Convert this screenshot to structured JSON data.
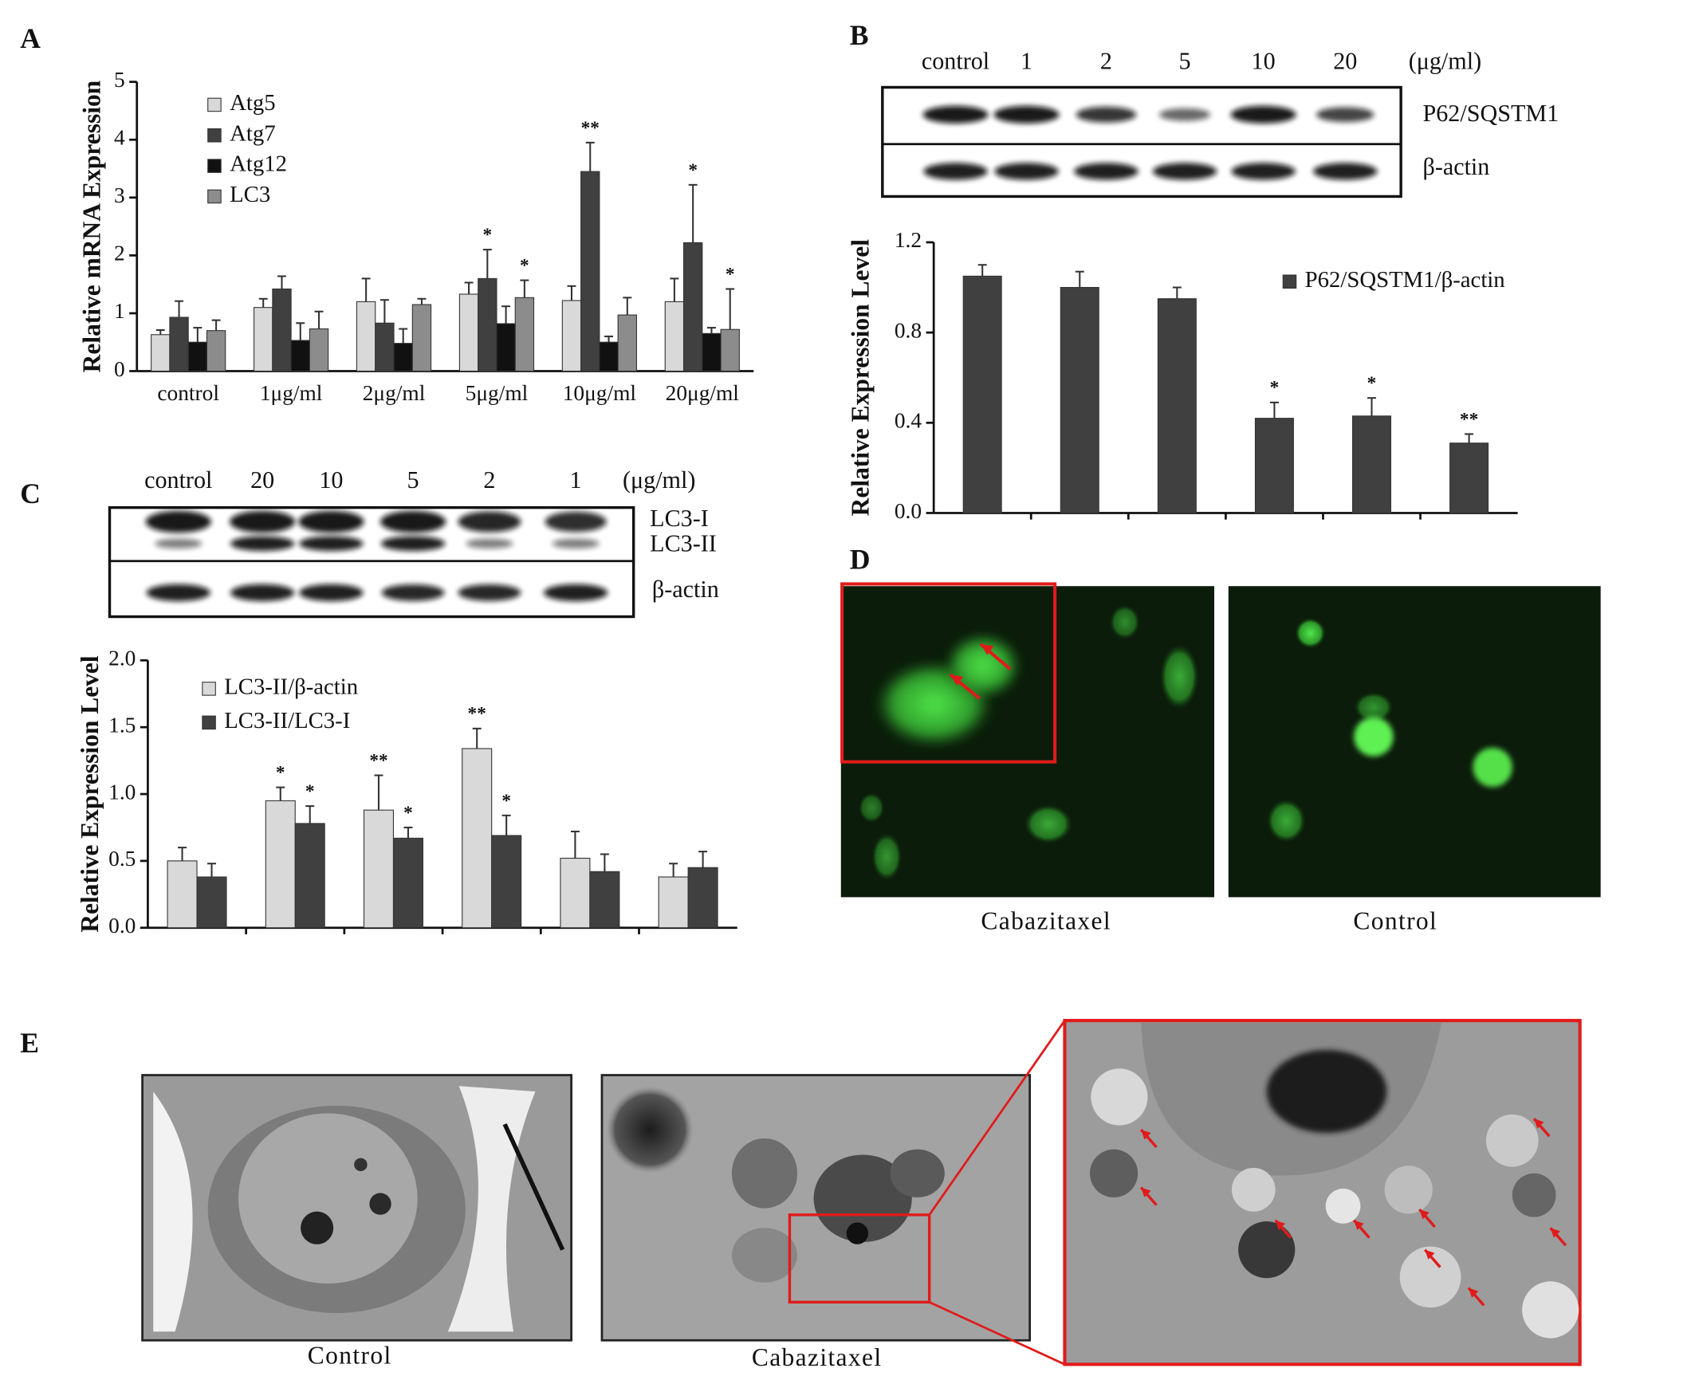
{
  "panel_labels": [
    "A",
    "B",
    "C",
    "D",
    "E"
  ],
  "chart_data": [
    {
      "type": "bar",
      "y_label": "Relative mRNA Expression",
      "categories": [
        "control",
        "1μg/ml",
        "2μg/ml",
        "5μg/ml",
        "10μg/ml",
        "20μg/ml"
      ],
      "ylim": [
        0,
        5
      ],
      "yticks": [
        0,
        1,
        2,
        3,
        4,
        5
      ],
      "series": [
        {
          "name": "Atg5",
          "color": "#d9d9d9",
          "values": [
            0.63,
            1.1,
            1.2,
            1.33,
            1.22,
            1.2
          ],
          "errors": [
            0.08,
            0.15,
            0.4,
            0.2,
            0.25,
            0.4
          ],
          "stars": [
            null,
            null,
            null,
            null,
            null,
            null
          ]
        },
        {
          "name": "Atg7",
          "color": "#404040",
          "values": [
            0.93,
            1.42,
            0.83,
            1.6,
            3.45,
            2.22
          ],
          "errors": [
            0.28,
            0.22,
            0.4,
            0.5,
            0.5,
            1.0
          ],
          "stars": [
            null,
            null,
            null,
            "*",
            "**",
            "*"
          ]
        },
        {
          "name": "Atg12",
          "color": "#111111",
          "values": [
            0.5,
            0.53,
            0.48,
            0.82,
            0.5,
            0.65
          ],
          "errors": [
            0.25,
            0.3,
            0.25,
            0.3,
            0.1,
            0.1
          ],
          "stars": [
            null,
            null,
            null,
            null,
            null,
            null
          ]
        },
        {
          "name": "LC3",
          "color": "#8c8c8c",
          "values": [
            0.7,
            0.73,
            1.15,
            1.27,
            0.97,
            0.72
          ],
          "errors": [
            0.18,
            0.3,
            0.1,
            0.3,
            0.3,
            0.7
          ],
          "stars": [
            null,
            null,
            null,
            "*",
            null,
            "*"
          ]
        }
      ]
    },
    {
      "type": "bar",
      "y_label": "Relative Expression Level",
      "categories": [
        null,
        null,
        null,
        null,
        null,
        null
      ],
      "ylim": [
        0,
        1.2
      ],
      "yticks": [
        {
          "value": 0,
          "label": "0.0"
        },
        0.4,
        0.8,
        1.2
      ],
      "series": [
        {
          "name": "P62/SQSTM1/β-actin",
          "color": "#404040",
          "values": [
            1.05,
            1.0,
            0.95,
            0.42,
            0.43,
            0.31
          ],
          "errors": [
            0.05,
            0.07,
            0.05,
            0.07,
            0.08,
            0.04
          ],
          "stars": [
            null,
            null,
            null,
            "*",
            "*",
            "**"
          ]
        }
      ]
    },
    {
      "type": "bar",
      "y_label": "Relative Expression Level",
      "categories": [
        null,
        null,
        null,
        null,
        null,
        null
      ],
      "ylim": [
        0,
        2.0
      ],
      "yticks": [
        {
          "value": 0,
          "label": "0.0"
        },
        0.5,
        {
          "value": 1,
          "label": "1.0"
        },
        1.5,
        {
          "value": 2,
          "label": "2.0"
        }
      ],
      "series": [
        {
          "name": "LC3-II/β-actin",
          "color": "#d9d9d9",
          "values": [
            0.5,
            0.95,
            0.88,
            1.34,
            0.52,
            0.38
          ],
          "errors": [
            0.1,
            0.1,
            0.26,
            0.15,
            0.2,
            0.1
          ],
          "stars": [
            null,
            "*",
            "**",
            "**",
            null,
            null
          ]
        },
        {
          "name": "LC3-II/LC3-I",
          "color": "#404040",
          "values": [
            0.38,
            0.78,
            0.67,
            0.69,
            0.42,
            0.45
          ],
          "errors": [
            0.1,
            0.13,
            0.08,
            0.15,
            0.13,
            0.12
          ],
          "stars": [
            null,
            "*",
            "*",
            "*",
            null,
            null
          ]
        }
      ]
    }
  ],
  "blot_B": {
    "lanes": [
      "control",
      "1",
      "2",
      "5",
      "10",
      "20"
    ],
    "unit": "(μg/ml)",
    "bands": [
      "P62/SQSTM1",
      "β-actin"
    ]
  },
  "blot_C": {
    "lanes": [
      "control",
      "20",
      "10",
      "5",
      "2",
      "1"
    ],
    "unit": "(μg/ml)",
    "bands": [
      "LC3-I",
      "LC3-II",
      "β-actin"
    ]
  },
  "panel_D": {
    "captions": [
      "Cabazitaxel",
      "Control"
    ]
  },
  "panel_E": {
    "captions": [
      "Control",
      "Cabazitaxel"
    ]
  }
}
